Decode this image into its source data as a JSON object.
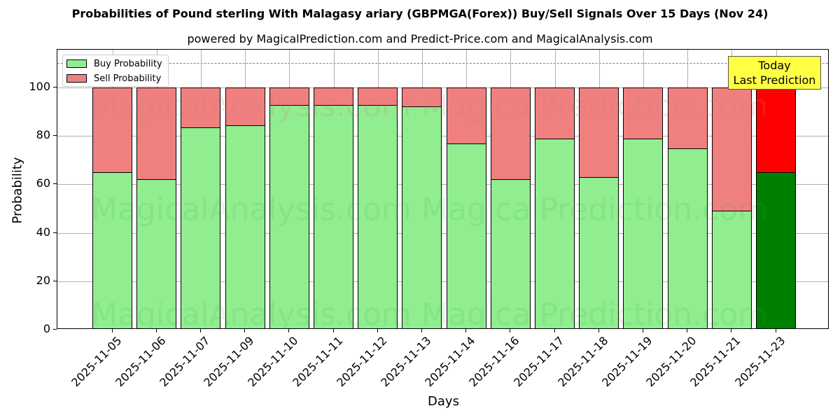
{
  "chart": {
    "title": "Probabilities of Pound sterling With Malagasy ariary (GBPMGA(Forex)) Buy/Sell Signals Over 15 Days (Nov 24)",
    "subtitle": "powered by MagicalPrediction.com and Predict-Price.com and MagicalAnalysis.com",
    "xlabel": "Days",
    "ylabel": "Probability",
    "legend": {
      "buy": "Buy Probability",
      "sell": "Sell Probability"
    },
    "annotation": {
      "line1": "Today",
      "line2": "Last Prediction"
    },
    "watermarks": [
      "MagicalAnalysis.com",
      "MagicalPrediction.com"
    ],
    "colors": {
      "buy": "#90ee90",
      "sell": "#f08080",
      "today_buy": "#008000",
      "today_sell": "#ff0000",
      "annotation_bg": "#ffff44"
    }
  },
  "chart_data": {
    "type": "bar",
    "stacked": true,
    "title": "Probabilities of Pound sterling With Malagasy ariary (GBPMGA(Forex)) Buy/Sell Signals Over 15 Days (Nov 24)",
    "subtitle": "powered by MagicalPrediction.com and Predict-Price.com and MagicalAnalysis.com",
    "xlabel": "Days",
    "ylabel": "Probability",
    "ylim": [
      0,
      115
    ],
    "yticks": [
      0,
      20,
      40,
      60,
      80,
      100
    ],
    "grid": true,
    "legend_position": "upper left",
    "reference_line": {
      "y": 110,
      "style": "dashed"
    },
    "categories": [
      "2025-11-05",
      "2025-11-06",
      "2025-11-07",
      "2025-11-09",
      "2025-11-10",
      "2025-11-11",
      "2025-11-12",
      "2025-11-13",
      "2025-11-14",
      "2025-11-16",
      "2025-11-17",
      "2025-11-18",
      "2025-11-19",
      "2025-11-20",
      "2025-11-21",
      "2025-11-23"
    ],
    "series": [
      {
        "name": "Buy Probability",
        "values": [
          65.0,
          62.0,
          83.4,
          84.5,
          92.9,
          92.9,
          92.9,
          92.3,
          77.0,
          62.0,
          79.0,
          62.9,
          79.0,
          74.9,
          49.0,
          65.0
        ]
      },
      {
        "name": "Sell Probability",
        "values": [
          35.0,
          38.0,
          16.6,
          15.5,
          7.1,
          7.1,
          7.1,
          7.7,
          23.0,
          38.0,
          21.0,
          37.1,
          21.0,
          25.1,
          51.0,
          35.0
        ]
      }
    ],
    "annotations": [
      {
        "text": "Today\nLast Prediction",
        "x": "2025-11-23"
      }
    ]
  }
}
